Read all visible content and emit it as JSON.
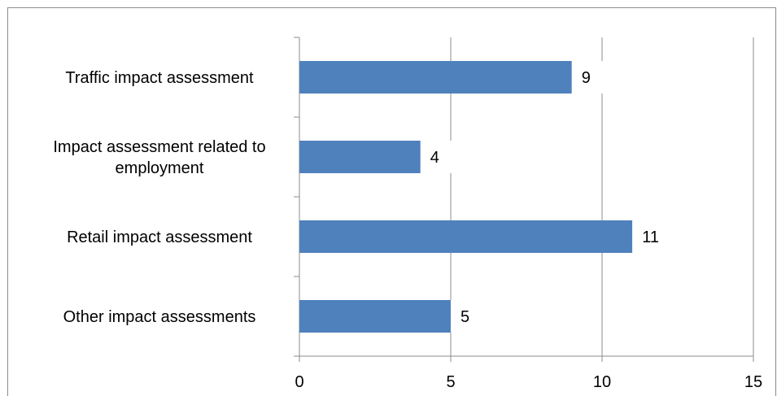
{
  "chart_data": {
    "type": "bar",
    "orientation": "horizontal",
    "categories": [
      [
        "Traffic impact assessment"
      ],
      [
        "Impact assessment related to",
        "employment"
      ],
      [
        "Retail impact assessment"
      ],
      [
        "Other impact assessments"
      ]
    ],
    "values": [
      9,
      4,
      11,
      5
    ],
    "xlim": [
      0,
      15
    ],
    "xticks": [
      "0",
      "5",
      "10",
      "15"
    ],
    "grid": true,
    "legend": "none",
    "bar_color": "#4f81bd",
    "grid_color": "#8c8c8c"
  }
}
